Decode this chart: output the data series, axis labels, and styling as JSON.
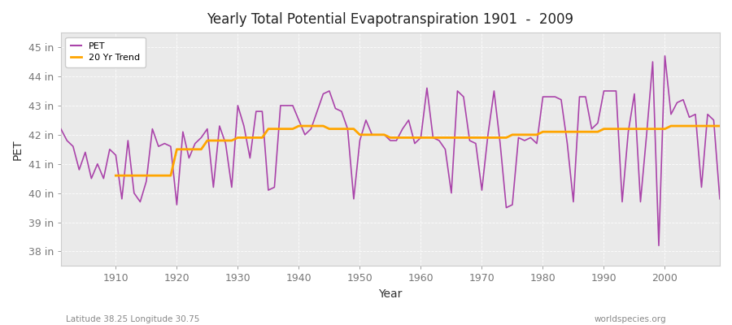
{
  "title": "Yearly Total Potential Evapotranspiration 1901  -  2009",
  "xlabel": "Year",
  "ylabel": "PET",
  "lat_lon_label": "Latitude 38.25 Longitude 30.75",
  "source_label": "worldspecies.org",
  "pet_color": "#AA44AA",
  "trend_color": "#FFA500",
  "fig_bg_color": "#FFFFFF",
  "plot_bg_color": "#EAEAEA",
  "ylim": [
    37.5,
    45.5
  ],
  "xlim": [
    1901,
    2009
  ],
  "yticks": [
    38,
    39,
    40,
    41,
    42,
    43,
    44,
    45
  ],
  "ytick_labels": [
    "38 in",
    "39 in",
    "40 in",
    "41 in",
    "42 in",
    "43 in",
    "44 in",
    "45 in"
  ],
  "years": [
    1901,
    1902,
    1903,
    1904,
    1905,
    1906,
    1907,
    1908,
    1909,
    1910,
    1911,
    1912,
    1913,
    1914,
    1915,
    1916,
    1917,
    1918,
    1919,
    1920,
    1921,
    1922,
    1923,
    1924,
    1925,
    1926,
    1927,
    1928,
    1929,
    1930,
    1931,
    1932,
    1933,
    1934,
    1935,
    1936,
    1937,
    1938,
    1939,
    1940,
    1941,
    1942,
    1943,
    1944,
    1945,
    1946,
    1947,
    1948,
    1949,
    1950,
    1951,
    1952,
    1953,
    1954,
    1955,
    1956,
    1957,
    1958,
    1959,
    1960,
    1961,
    1962,
    1963,
    1964,
    1965,
    1966,
    1967,
    1968,
    1969,
    1970,
    1971,
    1972,
    1973,
    1974,
    1975,
    1976,
    1977,
    1978,
    1979,
    1980,
    1981,
    1982,
    1983,
    1984,
    1985,
    1986,
    1987,
    1988,
    1989,
    1990,
    1991,
    1992,
    1993,
    1994,
    1995,
    1996,
    1997,
    1998,
    1999,
    2000,
    2001,
    2002,
    2003,
    2004,
    2005,
    2006,
    2007,
    2008,
    2009
  ],
  "pet_values": [
    42.2,
    41.8,
    41.6,
    40.8,
    41.4,
    40.5,
    41.0,
    40.5,
    41.5,
    41.3,
    39.8,
    41.8,
    40.0,
    39.7,
    40.4,
    42.2,
    41.6,
    41.7,
    41.6,
    39.6,
    42.1,
    41.2,
    41.7,
    41.9,
    42.2,
    40.2,
    42.3,
    41.7,
    40.2,
    43.0,
    42.3,
    41.2,
    42.8,
    42.8,
    40.1,
    40.2,
    43.0,
    43.0,
    43.0,
    42.5,
    42.0,
    42.2,
    42.8,
    43.4,
    43.5,
    42.9,
    42.8,
    42.2,
    39.8,
    41.8,
    42.5,
    42.0,
    42.0,
    42.0,
    41.8,
    41.8,
    42.2,
    42.5,
    41.7,
    41.9,
    43.6,
    41.9,
    41.8,
    41.5,
    40.0,
    43.5,
    43.3,
    41.8,
    41.7,
    40.1,
    42.0,
    43.5,
    41.7,
    39.5,
    39.6,
    41.9,
    41.8,
    41.9,
    41.7,
    43.3,
    43.3,
    43.3,
    43.2,
    41.7,
    39.7,
    43.3,
    43.3,
    42.2,
    42.4,
    43.5,
    43.5,
    43.5,
    39.7,
    42.1,
    43.4,
    39.7,
    42.0,
    44.5,
    38.2,
    44.7,
    42.7,
    43.1,
    43.2,
    42.6,
    42.7,
    40.2,
    42.7,
    42.5,
    39.8
  ],
  "trend_values": [
    null,
    null,
    null,
    null,
    null,
    null,
    null,
    null,
    null,
    40.6,
    40.6,
    40.6,
    40.6,
    40.6,
    40.6,
    40.6,
    40.6,
    40.6,
    40.6,
    41.5,
    41.5,
    41.5,
    41.5,
    41.5,
    41.8,
    41.8,
    41.8,
    41.8,
    41.8,
    41.9,
    41.9,
    41.9,
    41.9,
    41.9,
    42.2,
    42.2,
    42.2,
    42.2,
    42.2,
    42.3,
    42.3,
    42.3,
    42.3,
    42.3,
    42.2,
    42.2,
    42.2,
    42.2,
    42.2,
    42.0,
    42.0,
    42.0,
    42.0,
    42.0,
    41.9,
    41.9,
    41.9,
    41.9,
    41.9,
    41.9,
    41.9,
    41.9,
    41.9,
    41.9,
    41.9,
    41.9,
    41.9,
    41.9,
    41.9,
    41.9,
    41.9,
    41.9,
    41.9,
    41.9,
    42.0,
    42.0,
    42.0,
    42.0,
    42.0,
    42.1,
    42.1,
    42.1,
    42.1,
    42.1,
    42.1,
    42.1,
    42.1,
    42.1,
    42.1,
    42.2,
    42.2,
    42.2,
    42.2,
    42.2,
    42.2,
    42.2,
    42.2,
    42.2,
    42.2,
    42.2,
    42.3,
    42.3,
    42.3,
    42.3,
    42.3,
    42.3,
    42.3,
    42.3,
    42.3
  ]
}
